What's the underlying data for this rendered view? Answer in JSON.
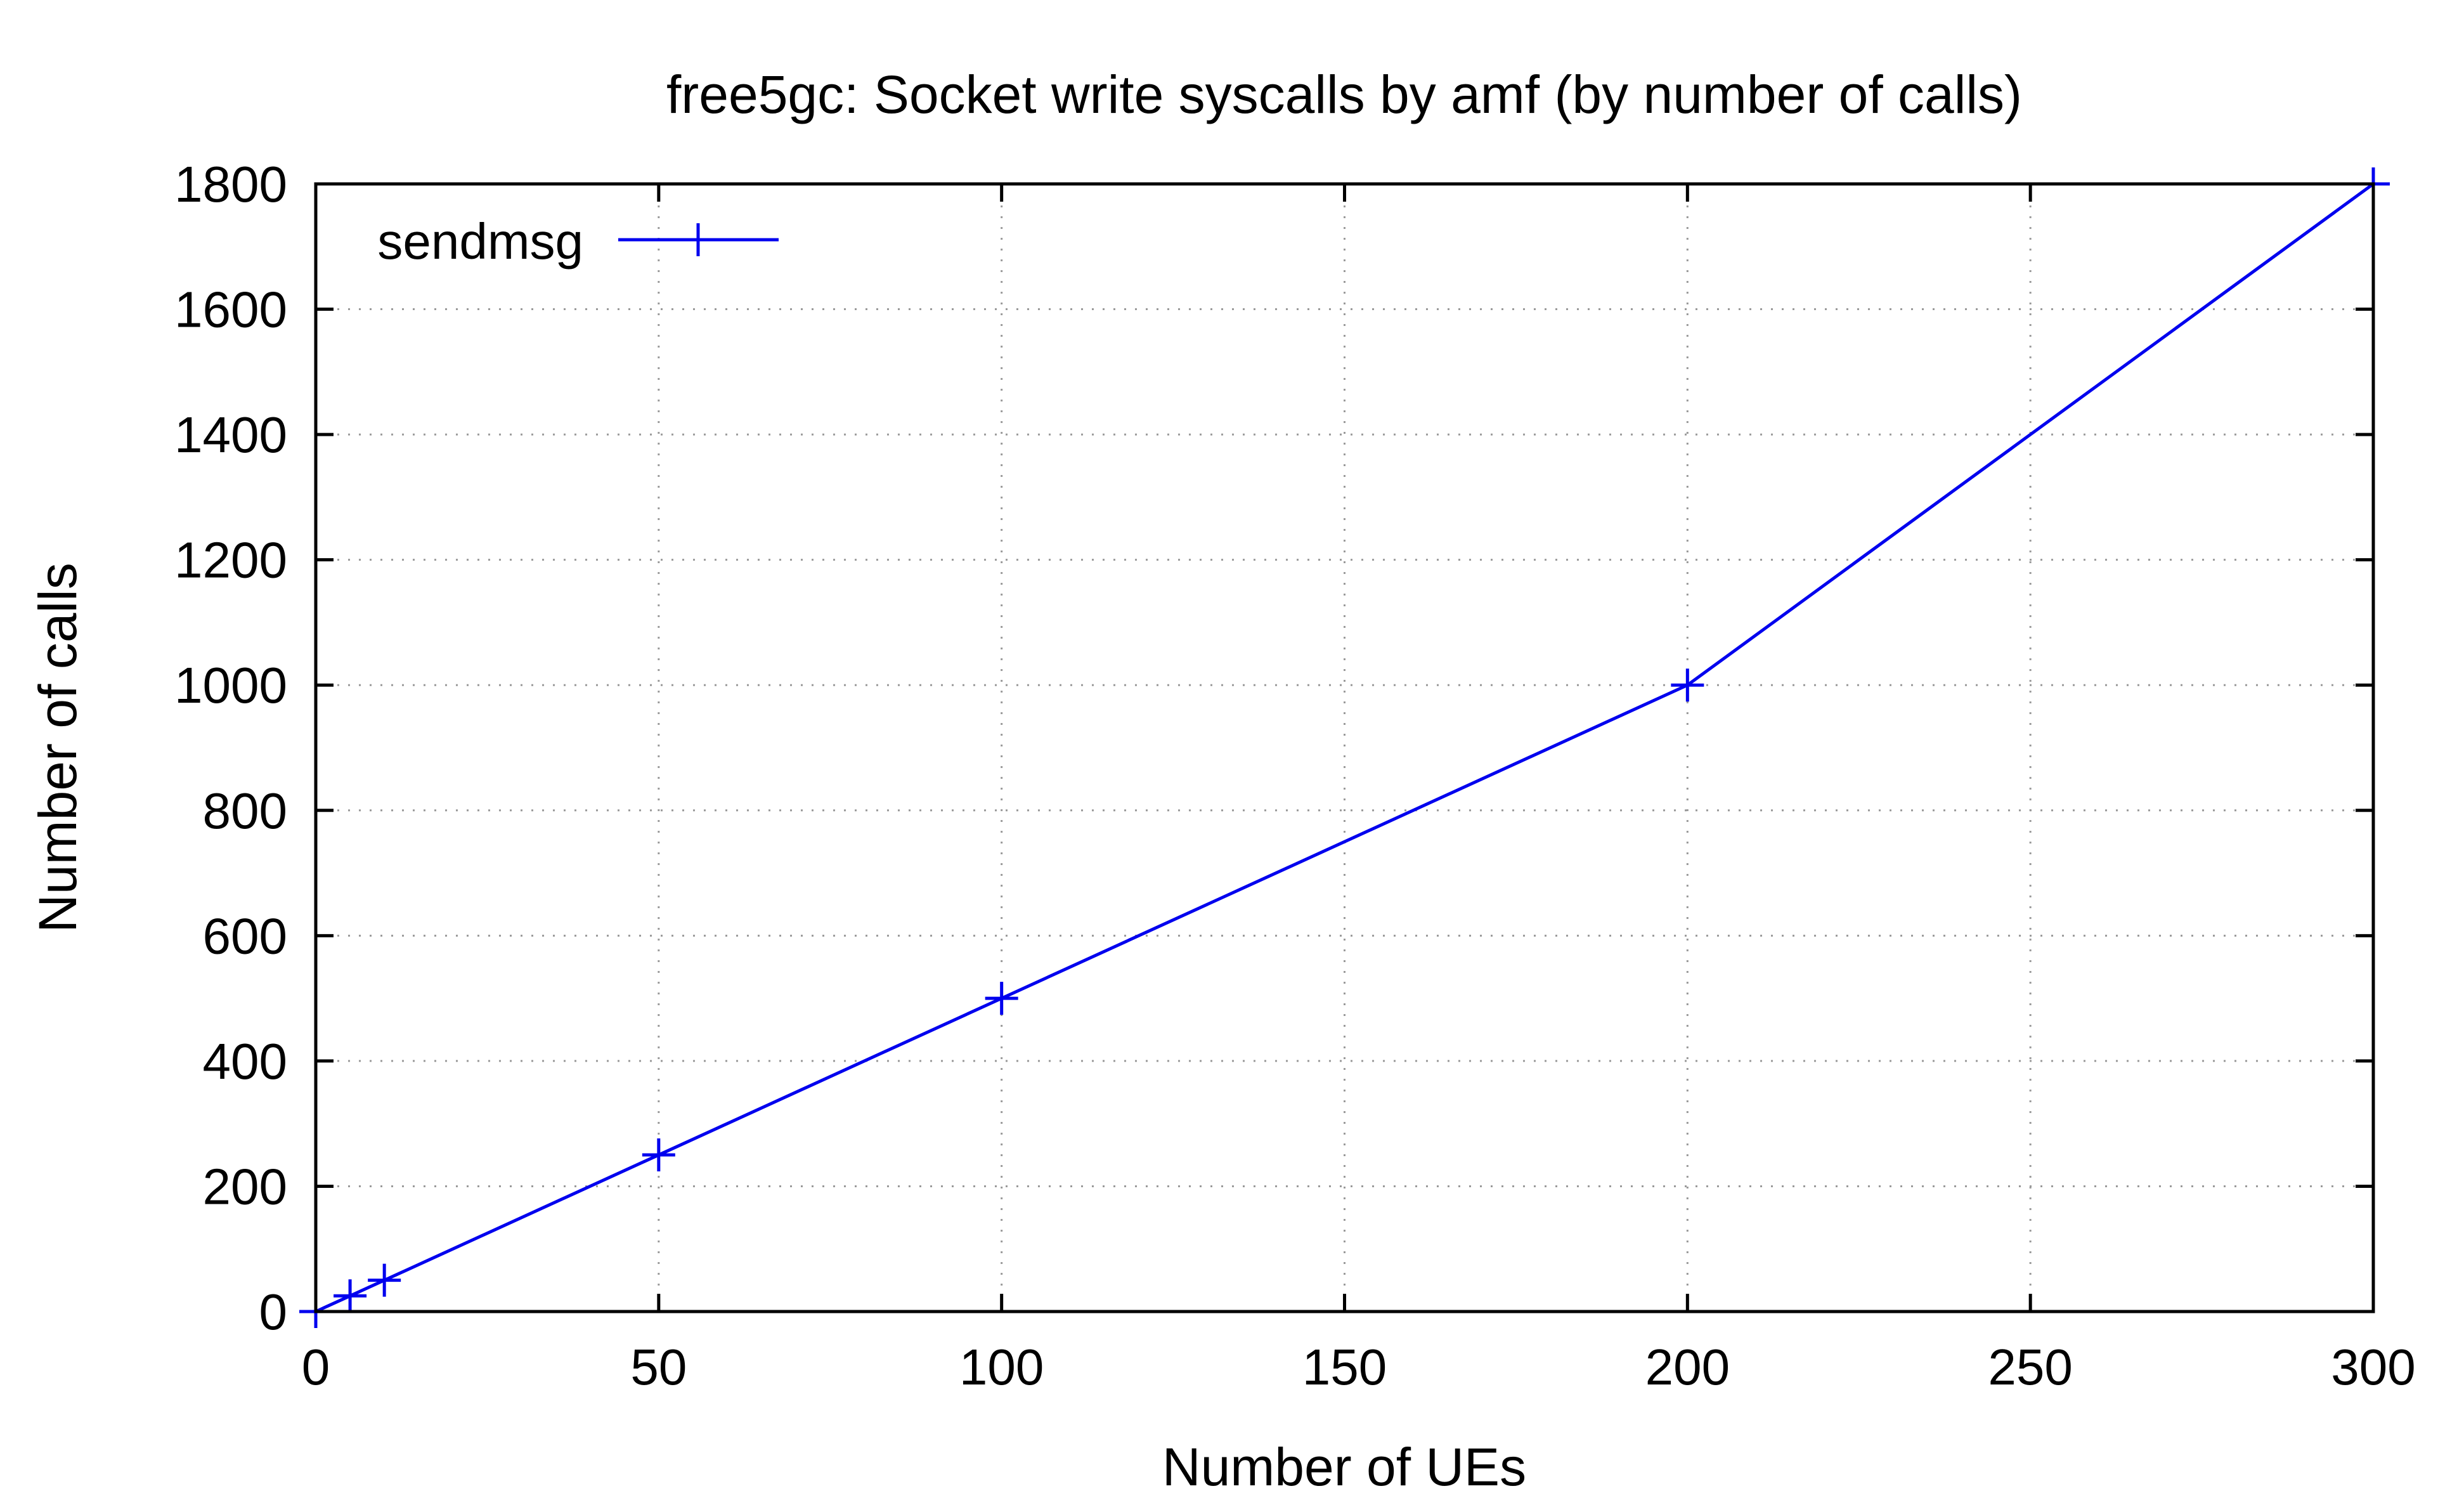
{
  "chart_data": {
    "type": "line",
    "title": "free5gc: Socket write syscalls by amf (by number of calls)",
    "xlabel": "Number of UEs",
    "ylabel": "Number of calls",
    "xlim": [
      0,
      300
    ],
    "ylim": [
      0,
      1800
    ],
    "xticks": [
      0,
      50,
      100,
      150,
      200,
      250,
      300
    ],
    "yticks": [
      0,
      200,
      400,
      600,
      800,
      1000,
      1200,
      1400,
      1600,
      1800
    ],
    "grid": true,
    "legend_position": "top-left",
    "marker": "plus",
    "series": [
      {
        "name": "sendmsg",
        "color": "#0000ee",
        "x": [
          0,
          5,
          10,
          50,
          100,
          200,
          300
        ],
        "y": [
          0,
          25,
          50,
          250,
          500,
          1000,
          1800
        ]
      }
    ]
  }
}
